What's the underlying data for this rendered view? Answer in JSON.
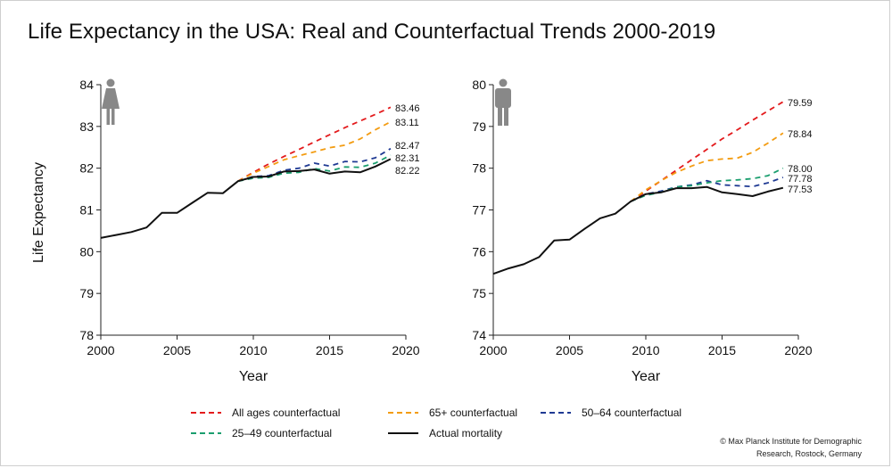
{
  "title": "Life Expectancy in the USA: Real and Counterfactual Trends 2000-2019",
  "credit": {
    "line1": "© Max Planck Institute for Demographic",
    "line2": "Research, Rostock, Germany"
  },
  "icons": {
    "left_panel": "female-icon",
    "right_panel": "male-icon"
  },
  "colors": {
    "all_ages": "#e31a1c",
    "age65plus": "#f39c12",
    "age50_64": "#1f3a93",
    "age25_49": "#1a9e6e",
    "actual": "#111111",
    "icon": "#888888"
  },
  "legend": [
    {
      "key": "all_ages",
      "label": "All ages counterfactual",
      "dashed": true
    },
    {
      "key": "age65plus",
      "label": "65+ counterfactual",
      "dashed": true
    },
    {
      "key": "age50_64",
      "label": "50–64 counterfactual",
      "dashed": true
    },
    {
      "key": "age25_49",
      "label": "25–49 counterfactual",
      "dashed": true
    },
    {
      "key": "actual",
      "label": "Actual mortality",
      "dashed": false
    }
  ],
  "chart_data": [
    {
      "type": "line",
      "panel": "female",
      "xlabel": "Year",
      "ylabel": "Life Expectancy",
      "xlim": [
        2000,
        2020
      ],
      "ylim": [
        78,
        84
      ],
      "xticks": [
        2000,
        2005,
        2010,
        2015,
        2020
      ],
      "yticks": [
        78,
        79,
        80,
        81,
        82,
        83,
        84
      ],
      "series": [
        {
          "key": "actual",
          "name": "Actual mortality",
          "x": [
            2000,
            2001,
            2002,
            2003,
            2004,
            2005,
            2006,
            2007,
            2008,
            2009,
            2010,
            2011,
            2012,
            2013,
            2014,
            2015,
            2016,
            2017,
            2018,
            2019
          ],
          "y": [
            80.33,
            80.4,
            80.47,
            80.58,
            80.93,
            80.93,
            81.17,
            81.41,
            81.4,
            81.69,
            81.79,
            81.8,
            81.92,
            81.93,
            81.97,
            81.87,
            81.92,
            81.9,
            82.04,
            82.22
          ]
        },
        {
          "key": "all_ages",
          "name": "All ages counterfactual",
          "x": [
            2009,
            2010,
            2011,
            2012,
            2013,
            2014,
            2015,
            2016,
            2017,
            2018,
            2019
          ],
          "y": [
            81.69,
            81.9,
            82.1,
            82.28,
            82.45,
            82.63,
            82.8,
            82.97,
            83.13,
            83.29,
            83.46
          ],
          "end_label": "83.46"
        },
        {
          "key": "age65plus",
          "name": "65+ counterfactual",
          "x": [
            2009,
            2010,
            2011,
            2012,
            2013,
            2014,
            2015,
            2016,
            2017,
            2018,
            2019
          ],
          "y": [
            81.69,
            81.88,
            82.04,
            82.2,
            82.3,
            82.39,
            82.49,
            82.55,
            82.7,
            82.92,
            83.11
          ],
          "end_label": "83.11"
        },
        {
          "key": "age50_64",
          "name": "50–64 counterfactual",
          "x": [
            2009,
            2010,
            2011,
            2012,
            2013,
            2014,
            2015,
            2016,
            2017,
            2018,
            2019
          ],
          "y": [
            81.69,
            81.8,
            81.82,
            81.95,
            82.0,
            82.12,
            82.05,
            82.16,
            82.15,
            82.25,
            82.47
          ],
          "end_label": "82.47"
        },
        {
          "key": "age25_49",
          "name": "25–49 counterfactual",
          "x": [
            2009,
            2010,
            2011,
            2012,
            2013,
            2014,
            2015,
            2016,
            2017,
            2018,
            2019
          ],
          "y": [
            81.69,
            81.76,
            81.78,
            81.88,
            81.9,
            81.99,
            81.93,
            82.03,
            82.02,
            82.12,
            82.31
          ],
          "end_label": "82.31"
        }
      ],
      "actual_end_label": "82.22"
    },
    {
      "type": "line",
      "panel": "male",
      "xlabel": "Year",
      "ylabel": "",
      "xlim": [
        2000,
        2020
      ],
      "ylim": [
        74,
        80
      ],
      "xticks": [
        2000,
        2005,
        2010,
        2015,
        2020
      ],
      "yticks": [
        74,
        75,
        76,
        77,
        78,
        79,
        80
      ],
      "series": [
        {
          "key": "actual",
          "name": "Actual mortality",
          "x": [
            2000,
            2001,
            2002,
            2003,
            2004,
            2005,
            2006,
            2007,
            2008,
            2009,
            2010,
            2011,
            2012,
            2013,
            2014,
            2015,
            2016,
            2017,
            2018,
            2019
          ],
          "y": [
            75.47,
            75.6,
            75.7,
            75.87,
            76.27,
            76.29,
            76.55,
            76.8,
            76.91,
            77.2,
            77.38,
            77.42,
            77.52,
            77.52,
            77.55,
            77.42,
            77.38,
            77.33,
            77.44,
            77.53
          ]
        },
        {
          "key": "all_ages",
          "name": "All ages counterfactual",
          "x": [
            2009,
            2010,
            2011,
            2012,
            2013,
            2014,
            2015,
            2016,
            2017,
            2018,
            2019
          ],
          "y": [
            77.2,
            77.45,
            77.7,
            77.95,
            78.2,
            78.45,
            78.7,
            78.92,
            79.15,
            79.37,
            79.59
          ],
          "end_label": "79.59"
        },
        {
          "key": "age65plus",
          "name": "65+ counterfactual",
          "x": [
            2009,
            2010,
            2011,
            2012,
            2013,
            2014,
            2015,
            2016,
            2017,
            2018,
            2019
          ],
          "y": [
            77.2,
            77.48,
            77.7,
            77.9,
            78.05,
            78.18,
            78.22,
            78.24,
            78.38,
            78.6,
            78.84
          ],
          "end_label": "78.84"
        },
        {
          "key": "age50_64",
          "name": "50–64 counterfactual",
          "x": [
            2009,
            2010,
            2011,
            2012,
            2013,
            2014,
            2015,
            2016,
            2017,
            2018,
            2019
          ],
          "y": [
            77.2,
            77.38,
            77.45,
            77.55,
            77.6,
            77.7,
            77.6,
            77.58,
            77.56,
            77.65,
            77.78
          ],
          "end_label": "77.78"
        },
        {
          "key": "age25_49",
          "name": "25–49 counterfactual",
          "x": [
            2009,
            2010,
            2011,
            2012,
            2013,
            2014,
            2015,
            2016,
            2017,
            2018,
            2019
          ],
          "y": [
            77.2,
            77.35,
            77.42,
            77.55,
            77.58,
            77.65,
            77.7,
            77.72,
            77.75,
            77.82,
            78.0
          ],
          "end_label": "78.00"
        }
      ],
      "actual_end_label": "77.53"
    }
  ]
}
